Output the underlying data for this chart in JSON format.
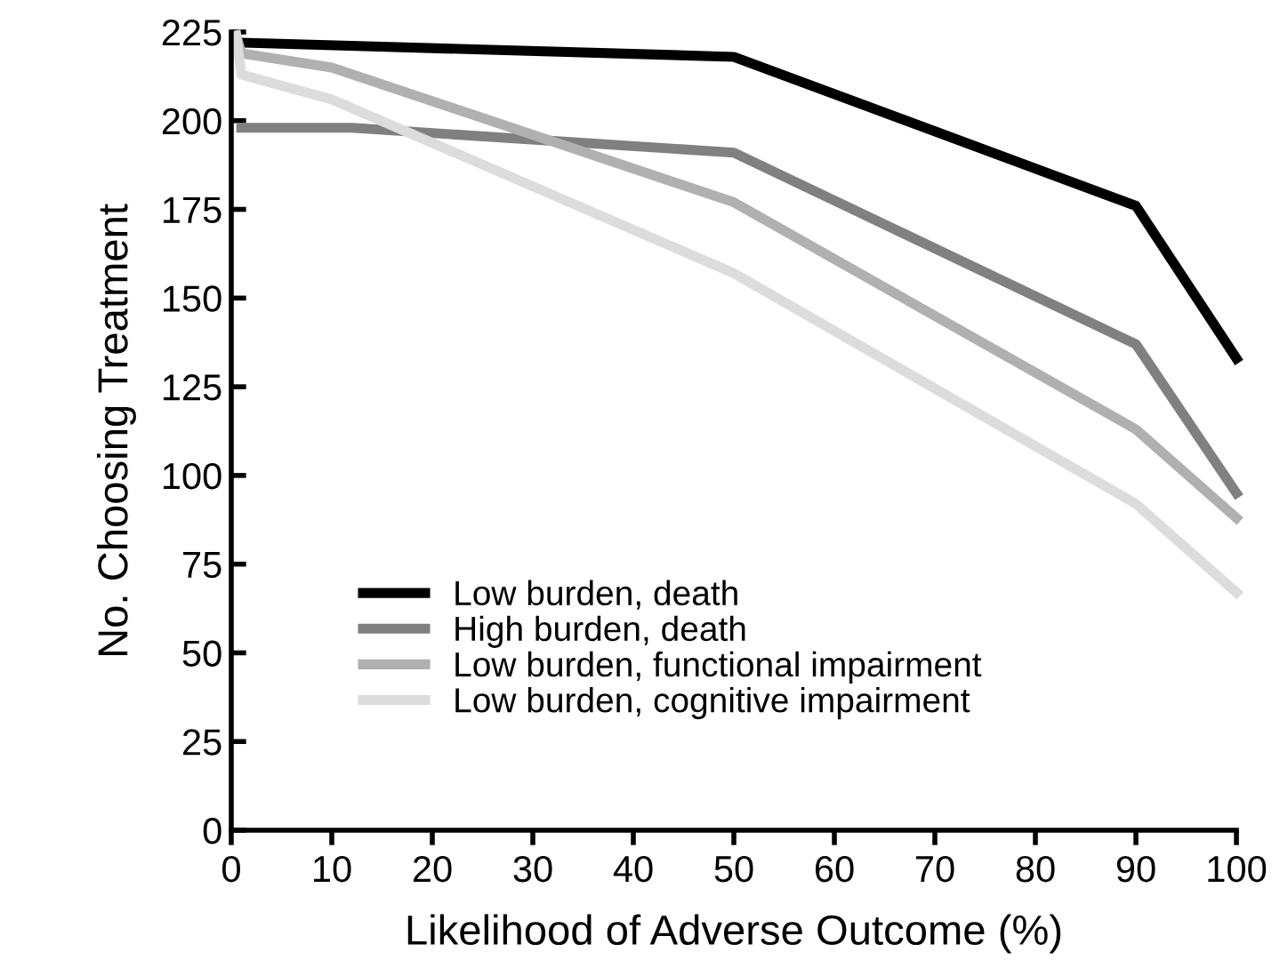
{
  "chart_data": {
    "type": "line",
    "xlabel": "Likelihood of Adverse Outcome (%)",
    "ylabel": "No. Choosing Treatment",
    "series": [
      {
        "name": "Low burden, death",
        "color": "#000000",
        "x": [
          1,
          50,
          90,
          100
        ],
        "values": [
          222,
          218,
          176,
          133
        ]
      },
      {
        "name": "High burden, death",
        "color": "#808080",
        "x": [
          1,
          12,
          50,
          90,
          100
        ],
        "values": [
          198,
          198,
          191,
          137,
          95
        ]
      },
      {
        "name": "Low burden, functional impairment",
        "color": "#b0b0b0",
        "x": [
          0.5,
          1,
          10,
          50,
          90,
          100
        ],
        "values": [
          224,
          219,
          215,
          177,
          113,
          88
        ]
      },
      {
        "name": "Low burden, cognitive impairment",
        "color": "#dcdcdc",
        "x": [
          0.5,
          1,
          10,
          50,
          90,
          100
        ],
        "values": [
          224,
          213,
          206,
          157,
          92,
          67
        ]
      }
    ],
    "xlim": [
      0,
      100
    ],
    "xticks": [
      0,
      10,
      20,
      30,
      40,
      50,
      60,
      70,
      80,
      90,
      100
    ],
    "ylim": [
      0,
      225
    ],
    "yticks": [
      0,
      25,
      50,
      75,
      100,
      125,
      150,
      175,
      200,
      225
    ],
    "grid": false,
    "legend": "bottom left",
    "marker": "none",
    "line_style": "solid"
  }
}
